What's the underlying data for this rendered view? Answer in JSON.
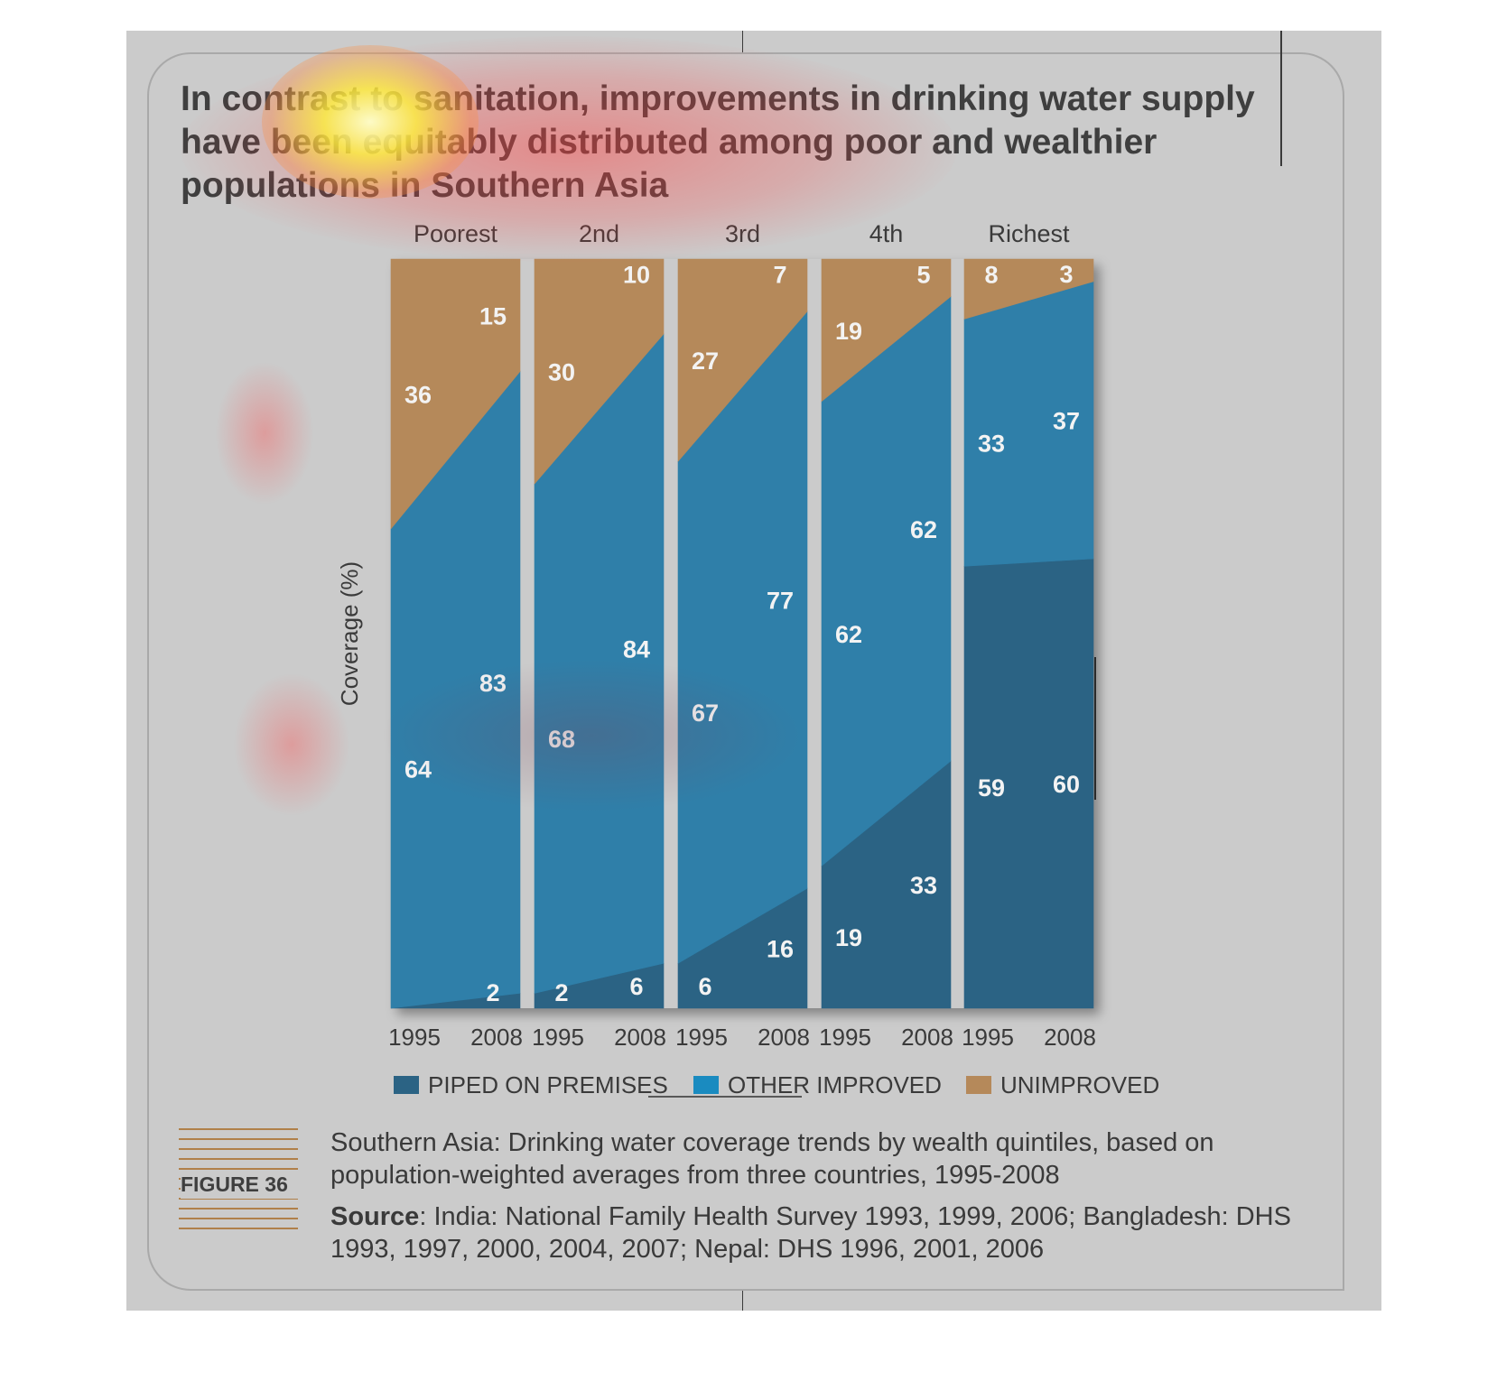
{
  "title_lines": [
    "In contrast to sanitation, improvements in drinking water supply",
    "have been equitably distributed among poor and wealthier",
    "populations in Southern Asia"
  ],
  "figure_label": "FIGURE 36",
  "caption": "Southern Asia: Drinking water coverage trends by wealth quintiles, based on population-weighted averages from three countries, 1995-2008",
  "source": {
    "label": "Source",
    "text": ": India: National Family Health Survey 1993, 1999, 2006; Bangladesh: DHS 1993, 1997, 2000, 2004, 2007; Nepal: DHS 1996, 2001, 2006"
  },
  "colors": {
    "piped": "#2b6384",
    "other": "#2f7fa9",
    "unimproved": "#b5895a",
    "legend_other": "#1a8bc0",
    "label_text": "#f3f3f3",
    "page": "#cbcbcb"
  },
  "chart_data": {
    "type": "area",
    "stacked": true,
    "ylabel": "Coverage (%)",
    "ylim": [
      0,
      100
    ],
    "groups": [
      "Poorest",
      "2nd",
      "3rd",
      "4th",
      "Richest"
    ],
    "x": [
      "1995",
      "2008"
    ],
    "legend": {
      "placement": "bottom",
      "entries": [
        "PIPED ON PREMISES",
        "OTHER IMPROVED",
        "UNIMPROVED"
      ]
    },
    "series": [
      {
        "name": "PIPED ON PREMISES",
        "values": [
          [
            0,
            2
          ],
          [
            2,
            6
          ],
          [
            6,
            16
          ],
          [
            19,
            33
          ],
          [
            59,
            60
          ]
        ],
        "labels": [
          [
            "",
            "2"
          ],
          [
            "2",
            "6"
          ],
          [
            "6",
            "16"
          ],
          [
            "19",
            "33"
          ],
          [
            "59",
            "60"
          ]
        ]
      },
      {
        "name": "OTHER IMPROVED",
        "values": [
          [
            64,
            83
          ],
          [
            68,
            84
          ],
          [
            67,
            77
          ],
          [
            62,
            62
          ],
          [
            33,
            37
          ]
        ],
        "labels": [
          [
            "64",
            "83"
          ],
          [
            "68",
            "84"
          ],
          [
            "67",
            "77"
          ],
          [
            "62",
            "62"
          ],
          [
            "33",
            "37"
          ]
        ]
      },
      {
        "name": "UNIMPROVED",
        "values": [
          [
            36,
            15
          ],
          [
            30,
            10
          ],
          [
            27,
            7
          ],
          [
            19,
            5
          ],
          [
            8,
            3
          ]
        ],
        "labels": [
          [
            "36",
            "15"
          ],
          [
            "30",
            "10"
          ],
          [
            "27",
            "7"
          ],
          [
            "19",
            "5"
          ],
          [
            "8",
            "3"
          ]
        ]
      }
    ]
  }
}
